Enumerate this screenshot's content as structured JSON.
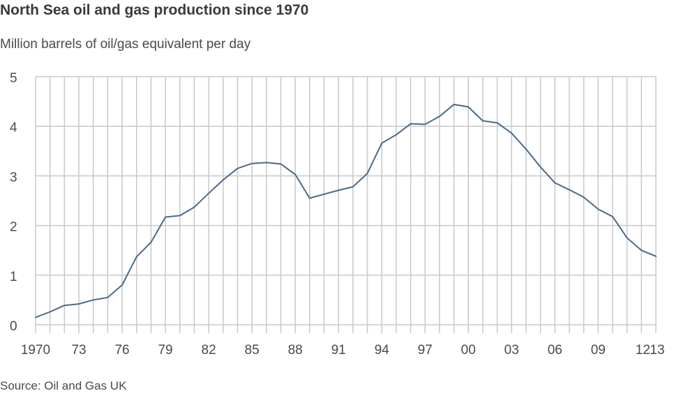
{
  "header": {
    "title": "North Sea oil and gas production since 1970",
    "subtitle": "Million barrels of oil/gas equivalent per day"
  },
  "footer": {
    "source": "Source: Oil and Gas UK"
  },
  "colors": {
    "line": "#4a6a88",
    "grid": "#c8c8c8",
    "text": "#404040"
  },
  "chart_data": {
    "type": "line",
    "title": "North Sea oil and gas production since 1970",
    "subtitle": "Million barrels of oil/gas equivalent per day",
    "xlabel": "",
    "ylabel": "Million barrels of oil/gas equivalent per day",
    "ylim": [
      0,
      5
    ],
    "xlim": [
      1970,
      2013
    ],
    "grid": true,
    "legend": null,
    "source": "Source: Oil and Gas UK",
    "y_ticks": [
      "0",
      "1",
      "2",
      "3",
      "4",
      "5"
    ],
    "x_tick_labels": [
      {
        "year": 1970,
        "label": "1970"
      },
      {
        "year": 1973,
        "label": "73"
      },
      {
        "year": 1976,
        "label": "76"
      },
      {
        "year": 1979,
        "label": "79"
      },
      {
        "year": 1982,
        "label": "82"
      },
      {
        "year": 1985,
        "label": "85"
      },
      {
        "year": 1988,
        "label": "88"
      },
      {
        "year": 1991,
        "label": "91"
      },
      {
        "year": 1994,
        "label": "94"
      },
      {
        "year": 1997,
        "label": "97"
      },
      {
        "year": 2000,
        "label": "00"
      },
      {
        "year": 2003,
        "label": "03"
      },
      {
        "year": 2006,
        "label": "06"
      },
      {
        "year": 2009,
        "label": "09"
      },
      {
        "year": 2012,
        "label": "12"
      },
      {
        "year": 2013,
        "label": "13"
      }
    ],
    "x": [
      1970,
      1971,
      1972,
      1973,
      1974,
      1975,
      1976,
      1977,
      1978,
      1979,
      1980,
      1981,
      1982,
      1983,
      1984,
      1985,
      1986,
      1987,
      1988,
      1989,
      1990,
      1991,
      1992,
      1993,
      1994,
      1995,
      1996,
      1997,
      1998,
      1999,
      2000,
      2001,
      2002,
      2003,
      2004,
      2005,
      2006,
      2007,
      2008,
      2009,
      2010,
      2011,
      2012,
      2013
    ],
    "series": [
      {
        "name": "Oil and gas production",
        "values": [
          0.15,
          0.26,
          0.39,
          0.42,
          0.5,
          0.55,
          0.8,
          1.37,
          1.66,
          2.17,
          2.2,
          2.37,
          2.65,
          2.92,
          3.15,
          3.25,
          3.27,
          3.24,
          3.03,
          2.55,
          2.63,
          2.71,
          2.78,
          3.05,
          3.66,
          3.83,
          4.05,
          4.04,
          4.2,
          4.44,
          4.39,
          4.11,
          4.07,
          3.86,
          3.54,
          3.18,
          2.86,
          2.72,
          2.57,
          2.33,
          2.18,
          1.75,
          1.5,
          1.38
        ]
      }
    ]
  }
}
